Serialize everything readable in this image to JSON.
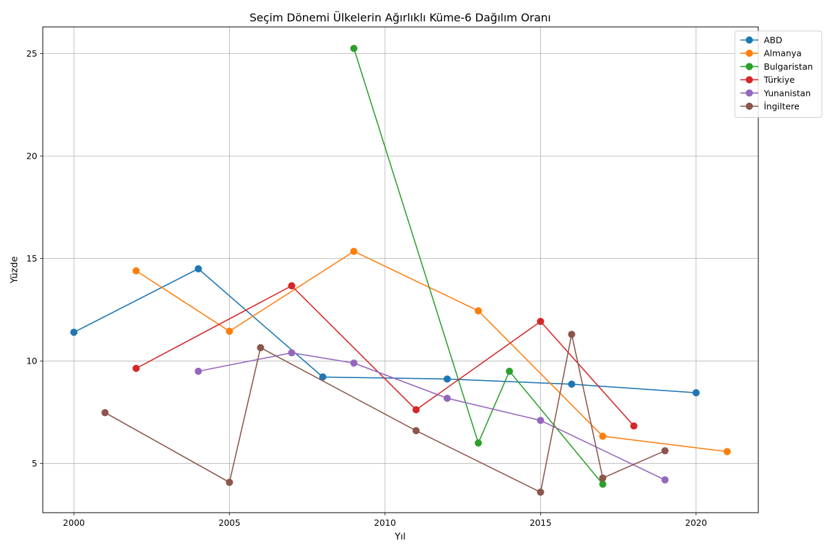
{
  "chart_data": {
    "type": "line",
    "title": "Seçim Dönemi Ülkelerin Ağırlıklı Küme-6 Dağılım Oranı",
    "xlabel": "Yıl",
    "ylabel": "Yüzde",
    "xlim": [
      1999,
      2022
    ],
    "ylim": [
      2.6,
      26.3
    ],
    "xticks": [
      2000,
      2005,
      2010,
      2015,
      2020
    ],
    "yticks": [
      5,
      10,
      15,
      20,
      25
    ],
    "grid": true,
    "legend_position": "top-right",
    "series": [
      {
        "name": "ABD",
        "color": "#1f77b4",
        "x": [
          2000,
          2004,
          2008,
          2012,
          2016,
          2020
        ],
        "y": [
          11.4,
          14.5,
          9.22,
          9.12,
          8.87,
          8.45
        ]
      },
      {
        "name": "Almanya",
        "color": "#ff7f0e",
        "x": [
          2002,
          2005,
          2009,
          2013,
          2017,
          2021
        ],
        "y": [
          14.4,
          11.45,
          15.35,
          12.45,
          6.33,
          5.58
        ]
      },
      {
        "name": "Bulgaristan",
        "color": "#2ca02c",
        "x": [
          2009,
          2013,
          2014,
          2017
        ],
        "y": [
          25.25,
          6.0,
          9.5,
          3.99
        ]
      },
      {
        "name": "Türkiye",
        "color": "#d62728",
        "x": [
          2002,
          2007,
          2011,
          2015,
          2018
        ],
        "y": [
          9.64,
          13.67,
          7.62,
          11.93,
          6.83
        ]
      },
      {
        "name": "Yunanistan",
        "color": "#9467bd",
        "x": [
          2004,
          2007,
          2009,
          2012,
          2015,
          2019
        ],
        "y": [
          9.5,
          10.4,
          9.9,
          8.18,
          7.1,
          4.2
        ]
      },
      {
        "name": "İngiltere",
        "color": "#8c564b",
        "x": [
          2001,
          2005,
          2006,
          2011,
          2015,
          2016,
          2017,
          2019
        ],
        "y": [
          7.48,
          4.08,
          10.65,
          6.6,
          3.6,
          11.3,
          4.29,
          5.62
        ]
      }
    ]
  }
}
